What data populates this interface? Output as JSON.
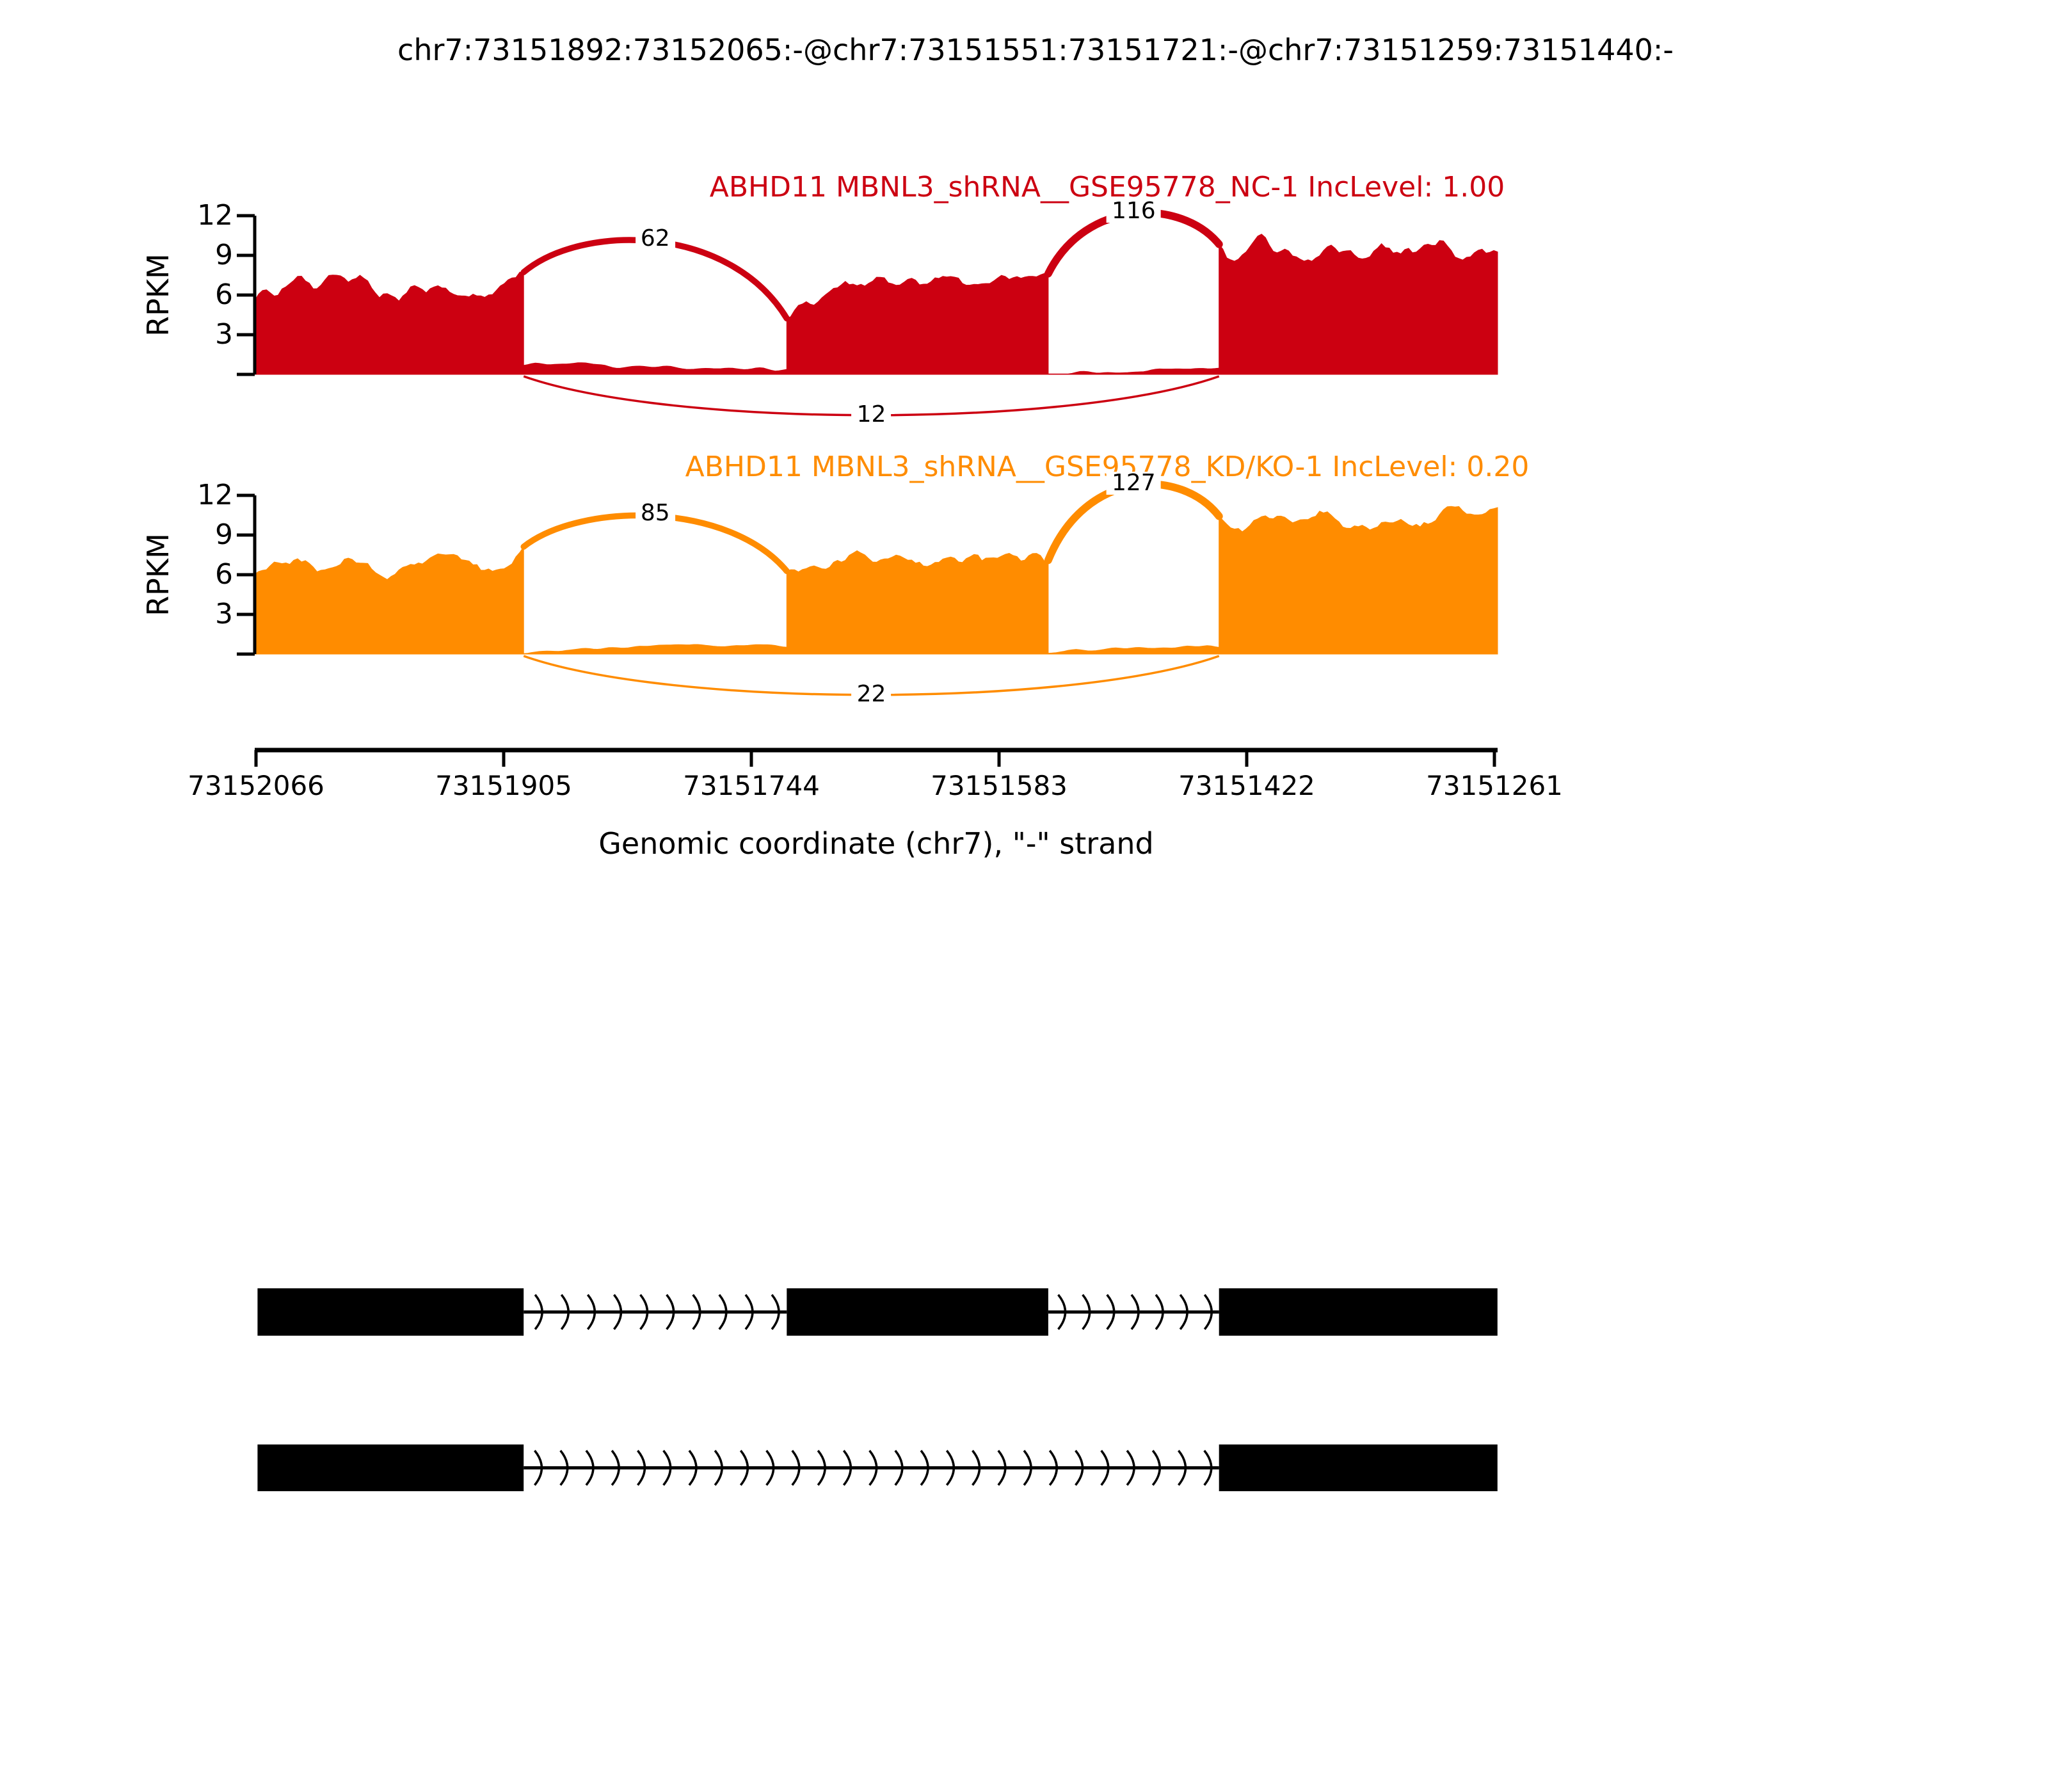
{
  "title": "chr7:73151892:73152065:-@chr7:73151551:73151721:-@chr7:73151259:73151440:-",
  "chart_data": {
    "type": "sashimi",
    "ylabel": "RPKM",
    "xlabel": "Genomic coordinate (chr7), \"-\" strand",
    "chromosome": "chr7",
    "strand": "-",
    "ylim": [
      0,
      12
    ],
    "y_ticks": [
      3,
      6,
      9,
      12
    ],
    "region": {
      "left_coord": 73152066,
      "right_coord": 73151261
    },
    "x_tick_labels": [
      "73152066",
      "73151905",
      "73151744",
      "73151583",
      "73151422",
      "73151261"
    ],
    "exons_genomic": [
      [
        73151892,
        73152065
      ],
      [
        73151551,
        73151721
      ],
      [
        73151259,
        73151440
      ]
    ],
    "tracks": [
      {
        "label": "ABHD11 MBNL3_shRNA__GSE95778_NC-1 IncLevel: 1.00",
        "sample": "MBNL3_shRNA__GSE95778_NC-1",
        "gene": "ABHD11",
        "inc_level": 1.0,
        "color": "#CC0011",
        "junctions": [
          {
            "label": "62",
            "count": 62,
            "from_exon": 0,
            "to_exon": 1,
            "position": "top"
          },
          {
            "label": "116",
            "count": 116,
            "from_exon": 1,
            "to_exon": 2,
            "position": "top"
          },
          {
            "label": "12",
            "count": 12,
            "from_exon": 0,
            "to_exon": 2,
            "position": "bottom"
          }
        ],
        "coverage_rpkm": {
          "exon1": [
            [
              0,
              5.8
            ],
            [
              0.08,
              6.4
            ],
            [
              0.15,
              7.4
            ],
            [
              0.22,
              6.7
            ],
            [
              0.3,
              6.9
            ],
            [
              0.38,
              7.2
            ],
            [
              0.45,
              6.2
            ],
            [
              0.52,
              5.6
            ],
            [
              0.6,
              6.4
            ],
            [
              0.68,
              7.0
            ],
            [
              0.75,
              6.0
            ],
            [
              0.82,
              5.9
            ],
            [
              0.9,
              6.3
            ],
            [
              1,
              7.2
            ]
          ],
          "intron1": [
            [
              0,
              0.75
            ],
            [
              0.1,
              0.8
            ],
            [
              0.2,
              0.9
            ],
            [
              0.35,
              0.6
            ],
            [
              0.5,
              0.55
            ],
            [
              0.7,
              0.45
            ],
            [
              1,
              0.35
            ]
          ],
          "exon2": [
            [
              0,
              4.9
            ],
            [
              0.08,
              5.5
            ],
            [
              0.18,
              6.3
            ],
            [
              0.28,
              6.8
            ],
            [
              0.35,
              7.1
            ],
            [
              0.45,
              6.4
            ],
            [
              0.55,
              6.9
            ],
            [
              0.65,
              7.4
            ],
            [
              0.72,
              6.8
            ],
            [
              0.8,
              7.2
            ],
            [
              0.9,
              7.0
            ],
            [
              1,
              7.8
            ]
          ],
          "intron2": [
            [
              0,
              0.1
            ],
            [
              0.3,
              0.15
            ],
            [
              0.6,
              0.3
            ],
            [
              0.85,
              0.4
            ],
            [
              1,
              0.5
            ]
          ],
          "exon3": [
            [
              0,
              9.6
            ],
            [
              0.08,
              8.7
            ],
            [
              0.15,
              9.9
            ],
            [
              0.25,
              9.2
            ],
            [
              0.33,
              8.5
            ],
            [
              0.4,
              9.3
            ],
            [
              0.5,
              8.8
            ],
            [
              0.58,
              9.5
            ],
            [
              0.65,
              8.9
            ],
            [
              0.72,
              9.6
            ],
            [
              0.8,
              10.4
            ],
            [
              0.87,
              9.0
            ],
            [
              0.93,
              9.8
            ],
            [
              1,
              9.6
            ]
          ]
        }
      },
      {
        "label": "ABHD11 MBNL3_shRNA__GSE95778_KD/KO-1 IncLevel: 0.20",
        "sample": "MBNL3_shRNA__GSE95778_KD/KO-1",
        "gene": "ABHD11",
        "inc_level": 0.2,
        "color": "#FF8C00",
        "junctions": [
          {
            "label": "85",
            "count": 85,
            "from_exon": 0,
            "to_exon": 1,
            "position": "top"
          },
          {
            "label": "127",
            "count": 127,
            "from_exon": 1,
            "to_exon": 2,
            "position": "top"
          },
          {
            "label": "22",
            "count": 22,
            "from_exon": 0,
            "to_exon": 2,
            "position": "bottom"
          }
        ],
        "coverage_rpkm": {
          "exon1": [
            [
              0,
              6.6
            ],
            [
              0.1,
              7.2
            ],
            [
              0.2,
              6.7
            ],
            [
              0.3,
              6.9
            ],
            [
              0.4,
              6.8
            ],
            [
              0.5,
              6.2
            ],
            [
              0.58,
              6.0
            ],
            [
              0.68,
              7.2
            ],
            [
              0.78,
              7.0
            ],
            [
              0.88,
              6.6
            ],
            [
              1,
              7.2
            ]
          ],
          "intron1": [
            [
              0,
              0.15
            ],
            [
              0.2,
              0.3
            ],
            [
              0.4,
              0.55
            ],
            [
              0.6,
              0.7
            ],
            [
              0.8,
              0.65
            ],
            [
              1,
              0.6
            ]
          ],
          "exon2": [
            [
              0,
              5.9
            ],
            [
              0.1,
              6.6
            ],
            [
              0.2,
              6.9
            ],
            [
              0.3,
              7.3
            ],
            [
              0.4,
              7.0
            ],
            [
              0.5,
              7.2
            ],
            [
              0.6,
              7.5
            ],
            [
              0.7,
              7.8
            ],
            [
              0.8,
              6.8
            ],
            [
              0.9,
              7.2
            ],
            [
              1,
              7.6
            ]
          ],
          "intron2": [
            [
              0,
              0.2
            ],
            [
              0.3,
              0.3
            ],
            [
              0.6,
              0.45
            ],
            [
              1,
              0.6
            ]
          ],
          "exon3": [
            [
              0,
              10.2
            ],
            [
              0.08,
              9.7
            ],
            [
              0.16,
              10.4
            ],
            [
              0.25,
              9.9
            ],
            [
              0.35,
              10.8
            ],
            [
              0.45,
              9.8
            ],
            [
              0.55,
              9.6
            ],
            [
              0.65,
              10.2
            ],
            [
              0.72,
              9.4
            ],
            [
              0.8,
              10.6
            ],
            [
              0.88,
              11.2
            ],
            [
              0.94,
              10.2
            ],
            [
              1,
              11.0
            ]
          ]
        }
      }
    ],
    "transcripts": [
      {
        "exons": [
          0,
          1,
          2
        ],
        "color": "#000000"
      },
      {
        "exons": [
          0,
          2
        ],
        "color": "#000000"
      }
    ]
  }
}
